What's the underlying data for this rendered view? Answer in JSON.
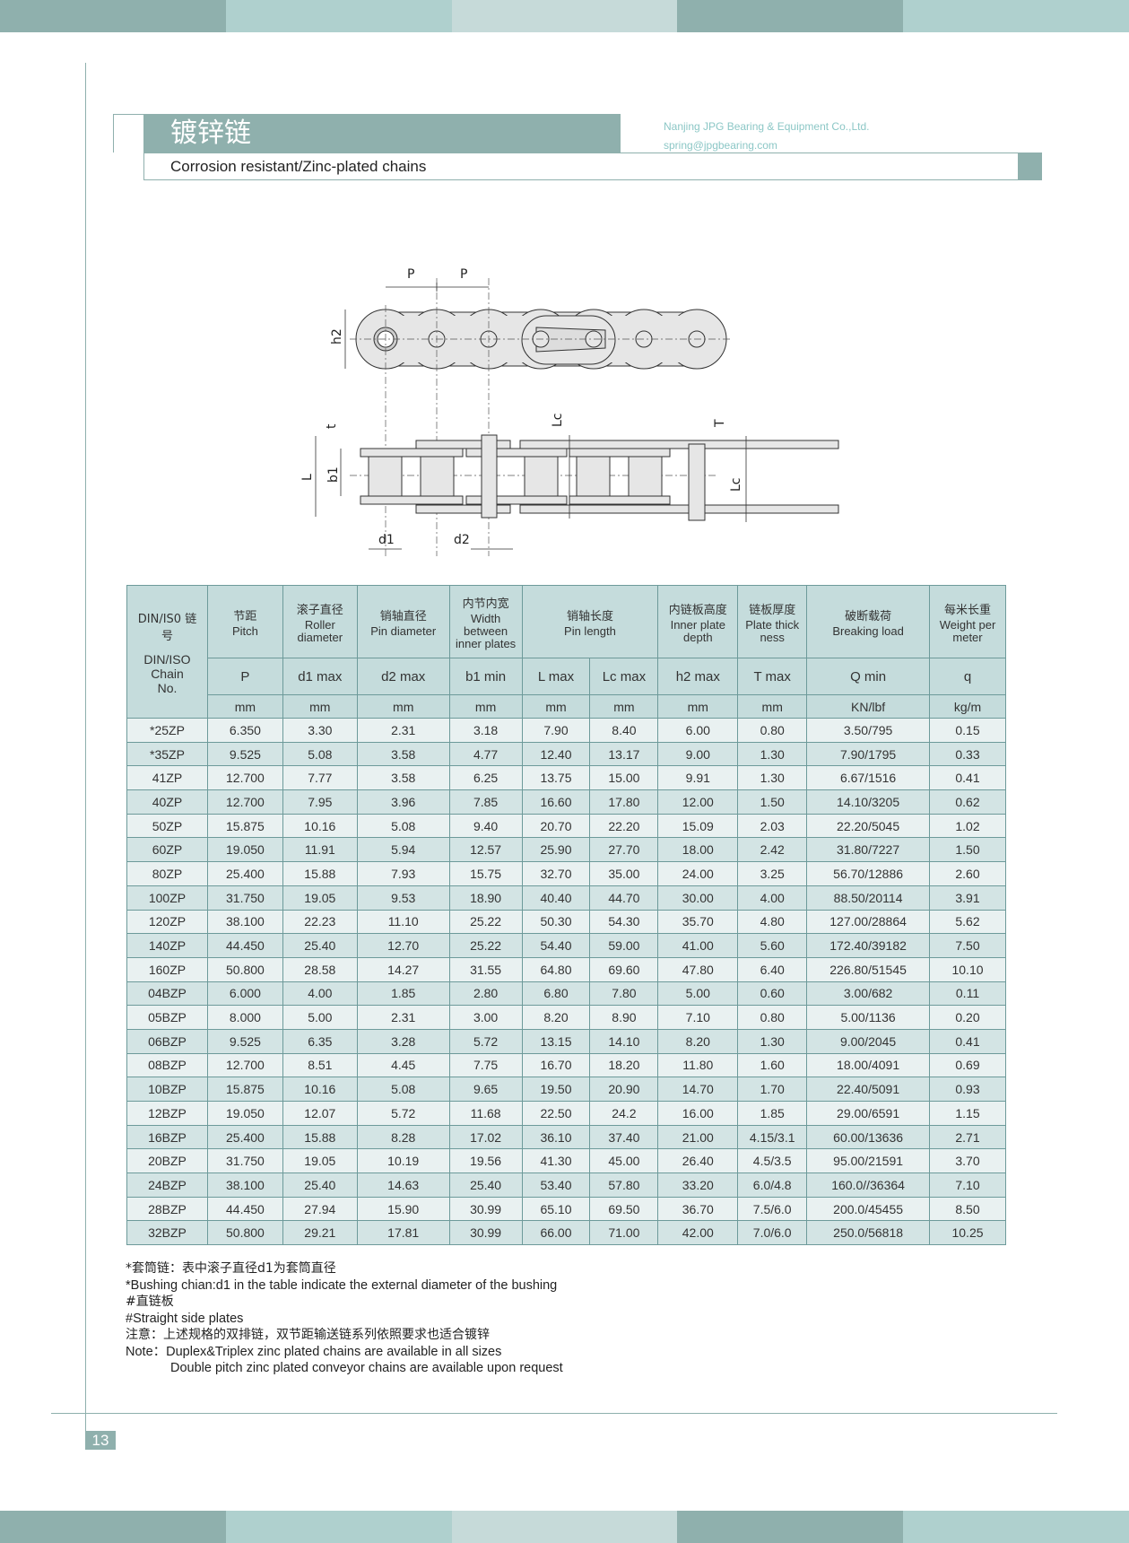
{
  "colors": {
    "accent": "#8fb0ad",
    "table_header": "#c5dcdc",
    "row_light": "#e9f1f1",
    "row_dark": "#d3e4e4",
    "company_text": "#8cc7c6"
  },
  "header": {
    "title_cn": "镀锌链",
    "subtitle": "Corrosion resistant/Zinc-plated chains",
    "company": "Nanjing JPG Bearing & Equipment Co.,Ltd.",
    "email": "spring@jpgbearing.com"
  },
  "diagram": {
    "labels": {
      "p1": "P",
      "p2": "P",
      "h2": "h2",
      "t": "t",
      "L": "L",
      "b1": "b1",
      "d1": "d1",
      "d2": "d2",
      "lc_top": "Lc",
      "lc_right": "Lc",
      "T": "T"
    }
  },
  "table": {
    "chain_no": {
      "cn": "DIN/IS0 链 号",
      "en": "DIN/ISO Chain No."
    },
    "columns": [
      {
        "cn": "节距",
        "en": "Pitch",
        "sym": "P",
        "unit": "mm"
      },
      {
        "cn": "滚子直径",
        "en": "Roller diameter",
        "sym": "d1 max",
        "unit": "mm"
      },
      {
        "cn": "销轴直径",
        "en": "Pin diameter",
        "sym": "d2 max",
        "unit": "mm"
      },
      {
        "cn": "内节内宽",
        "en": "Width between inner plates",
        "sym": "b1 min",
        "unit": "mm"
      },
      {
        "cn": "销轴长度",
        "en": "Pin length",
        "sym": "L max",
        "sym2": "Lc max",
        "unit": "mm",
        "unit2": "mm"
      },
      {
        "cn": "内链板高度",
        "en": "Inner plate depth",
        "sym": "h2 max",
        "unit": "mm"
      },
      {
        "cn": "链板厚度",
        "en": "Plate thick ness",
        "sym": "T max",
        "unit": "mm"
      },
      {
        "cn": "破断载荷",
        "en": "Breaking load",
        "sym": "Q min",
        "unit": "KN/lbf"
      },
      {
        "cn": "每米长重",
        "en": "Weight per meter",
        "sym": "q",
        "unit": "kg/m"
      }
    ],
    "rows": [
      [
        "*25ZP",
        "6.350",
        "3.30",
        "2.31",
        "3.18",
        "7.90",
        "8.40",
        "6.00",
        "0.80",
        "3.50/795",
        "0.15"
      ],
      [
        "*35ZP",
        "9.525",
        "5.08",
        "3.58",
        "4.77",
        "12.40",
        "13.17",
        "9.00",
        "1.30",
        "7.90/1795",
        "0.33"
      ],
      [
        "41ZP",
        "12.700",
        "7.77",
        "3.58",
        "6.25",
        "13.75",
        "15.00",
        "9.91",
        "1.30",
        "6.67/1516",
        "0.41"
      ],
      [
        "40ZP",
        "12.700",
        "7.95",
        "3.96",
        "7.85",
        "16.60",
        "17.80",
        "12.00",
        "1.50",
        "14.10/3205",
        "0.62"
      ],
      [
        "50ZP",
        "15.875",
        "10.16",
        "5.08",
        "9.40",
        "20.70",
        "22.20",
        "15.09",
        "2.03",
        "22.20/5045",
        "1.02"
      ],
      [
        "60ZP",
        "19.050",
        "11.91",
        "5.94",
        "12.57",
        "25.90",
        "27.70",
        "18.00",
        "2.42",
        "31.80/7227",
        "1.50"
      ],
      [
        "80ZP",
        "25.400",
        "15.88",
        "7.93",
        "15.75",
        "32.70",
        "35.00",
        "24.00",
        "3.25",
        "56.70/12886",
        "2.60"
      ],
      [
        "100ZP",
        "31.750",
        "19.05",
        "9.53",
        "18.90",
        "40.40",
        "44.70",
        "30.00",
        "4.00",
        "88.50/20114",
        "3.91"
      ],
      [
        "120ZP",
        "38.100",
        "22.23",
        "11.10",
        "25.22",
        "50.30",
        "54.30",
        "35.70",
        "4.80",
        "127.00/28864",
        "5.62"
      ],
      [
        "140ZP",
        "44.450",
        "25.40",
        "12.70",
        "25.22",
        "54.40",
        "59.00",
        "41.00",
        "5.60",
        "172.40/39182",
        "7.50"
      ],
      [
        "160ZP",
        "50.800",
        "28.58",
        "14.27",
        "31.55",
        "64.80",
        "69.60",
        "47.80",
        "6.40",
        "226.80/51545",
        "10.10"
      ],
      [
        "04BZP",
        "6.000",
        "4.00",
        "1.85",
        "2.80",
        "6.80",
        "7.80",
        "5.00",
        "0.60",
        "3.00/682",
        "0.11"
      ],
      [
        "05BZP",
        "8.000",
        "5.00",
        "2.31",
        "3.00",
        "8.20",
        "8.90",
        "7.10",
        "0.80",
        "5.00/1136",
        "0.20"
      ],
      [
        "06BZP",
        "9.525",
        "6.35",
        "3.28",
        "5.72",
        "13.15",
        "14.10",
        "8.20",
        "1.30",
        "9.00/2045",
        "0.41"
      ],
      [
        "08BZP",
        "12.700",
        "8.51",
        "4.45",
        "7.75",
        "16.70",
        "18.20",
        "11.80",
        "1.60",
        "18.00/4091",
        "0.69"
      ],
      [
        "10BZP",
        "15.875",
        "10.16",
        "5.08",
        "9.65",
        "19.50",
        "20.90",
        "14.70",
        "1.70",
        "22.40/5091",
        "0.93"
      ],
      [
        "12BZP",
        "19.050",
        "12.07",
        "5.72",
        "11.68",
        "22.50",
        "24.2",
        "16.00",
        "1.85",
        "29.00/6591",
        "1.15"
      ],
      [
        "16BZP",
        "25.400",
        "15.88",
        "8.28",
        "17.02",
        "36.10",
        "37.40",
        "21.00",
        "4.15/3.1",
        "60.00/13636",
        "2.71"
      ],
      [
        "20BZP",
        "31.750",
        "19.05",
        "10.19",
        "19.56",
        "41.30",
        "45.00",
        "26.40",
        "4.5/3.5",
        "95.00/21591",
        "3.70"
      ],
      [
        "24BZP",
        "38.100",
        "25.40",
        "14.63",
        "25.40",
        "53.40",
        "57.80",
        "33.20",
        "6.0/4.8",
        "160.0//36364",
        "7.10"
      ],
      [
        "28BZP",
        "44.450",
        "27.94",
        "15.90",
        "30.99",
        "65.10",
        "69.50",
        "36.70",
        "7.5/6.0",
        "200.0/45455",
        "8.50"
      ],
      [
        "32BZP",
        "50.800",
        "29.21",
        "17.81",
        "30.99",
        "66.00",
        "71.00",
        "42.00",
        "7.0/6.0",
        "250.0/56818",
        "10.25"
      ]
    ]
  },
  "notes": {
    "n1": "*套筒链：表中滚子直径d1为套筒直径",
    "n2": "*Bushing chian:d1 in the table indicate the external diameter of the bushing",
    "n3": "#直链板",
    "n4": "#Straight side plates",
    "n5": " 注意：上述规格的双排链，双节距输送链系列依照要求也适合镀锌",
    "n6": " Note：Duplex&Triplex zinc plated chains are available in all sizes",
    "n7": "Double pitch zinc plated conveyor chains are available upon request"
  },
  "page_number": "13"
}
